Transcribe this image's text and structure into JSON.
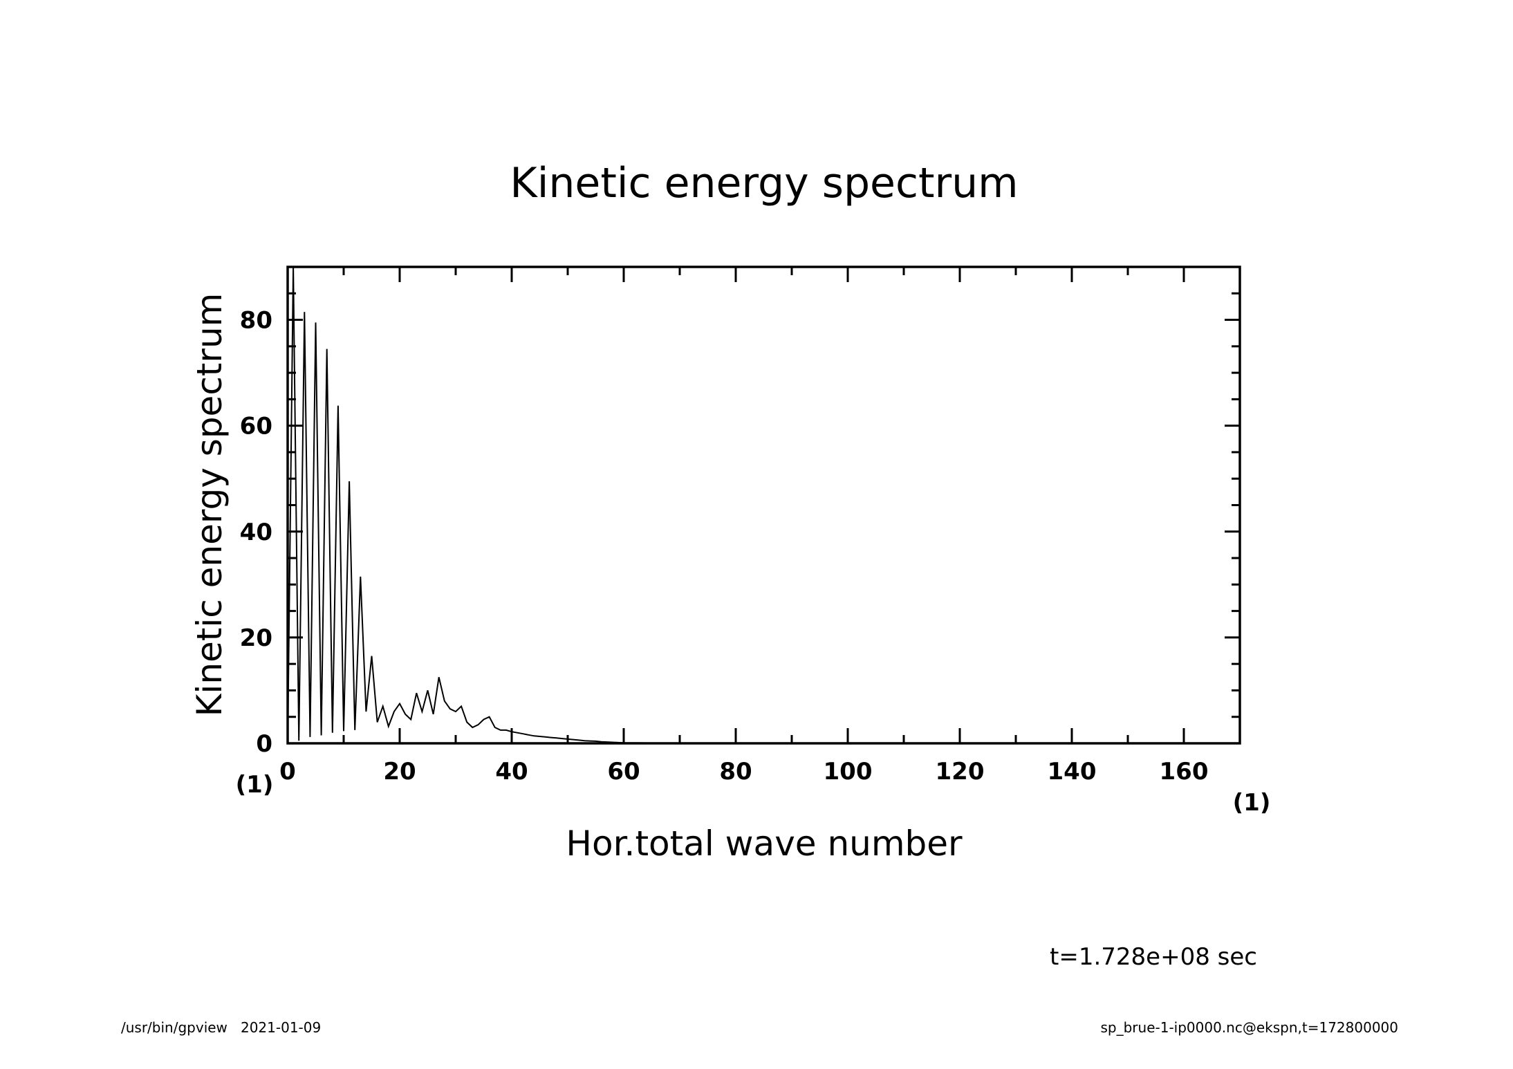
{
  "chart_data": {
    "type": "line",
    "title": "Kinetic energy spectrum",
    "xlabel": "Hor.total wave number",
    "ylabel": "Kinetic energy spectrum",
    "x_unit": "(1)",
    "y_unit": "(1)",
    "xlim": [
      0,
      170
    ],
    "ylim": [
      0,
      90
    ],
    "x_ticks": [
      0,
      20,
      40,
      60,
      80,
      100,
      120,
      140,
      160
    ],
    "y_ticks": [
      0,
      20,
      40,
      60,
      80
    ],
    "grid": false,
    "series": [
      {
        "x": [
          0,
          1,
          2,
          3,
          4,
          5,
          6,
          7,
          8,
          9,
          10,
          11,
          12,
          13,
          14,
          15,
          16,
          17,
          18,
          19,
          20,
          21,
          22,
          23,
          24,
          25,
          26,
          27,
          28,
          29,
          30,
          31,
          32,
          33,
          34,
          35,
          36,
          37,
          38,
          39,
          40,
          41,
          42,
          43,
          44,
          45,
          46,
          47,
          48,
          49,
          50,
          51,
          52,
          53,
          54,
          55,
          56,
          57,
          58,
          59,
          60,
          62,
          64,
          66,
          68,
          70,
          80,
          90,
          100,
          110,
          120,
          130,
          140,
          150,
          160,
          170
        ],
        "y": [
          0,
          90,
          0.5,
          81.5,
          1.2,
          79.5,
          1.5,
          74.5,
          2.0,
          63.8,
          2.3,
          49.5,
          2.5,
          31.5,
          6.0,
          16.5,
          4.0,
          7.0,
          3.2,
          6.0,
          7.5,
          5.5,
          4.5,
          9.5,
          6.0,
          10.0,
          5.5,
          12.5,
          8.0,
          6.5,
          6.0,
          7.0,
          4.0,
          3.0,
          3.5,
          4.5,
          5.0,
          3.0,
          2.5,
          2.5,
          2.2,
          2.0,
          1.8,
          1.6,
          1.4,
          1.3,
          1.2,
          1.1,
          1.0,
          0.9,
          0.8,
          0.7,
          0.6,
          0.5,
          0.45,
          0.4,
          0.3,
          0.25,
          0.2,
          0.15,
          0.1,
          0.08,
          0.06,
          0.05,
          0.04,
          0.03,
          0.02,
          0.01,
          0.01,
          0.0,
          0.0,
          0.0,
          0.0,
          0.0,
          0.0,
          0.0
        ]
      }
    ]
  },
  "annotations": {
    "time": "t=1.728e+08 sec",
    "footer_left": "/usr/bin/gpview   2021-01-09",
    "footer_right": "sp_brue-1-ip0000.nc@ekspn,t=172800000"
  }
}
